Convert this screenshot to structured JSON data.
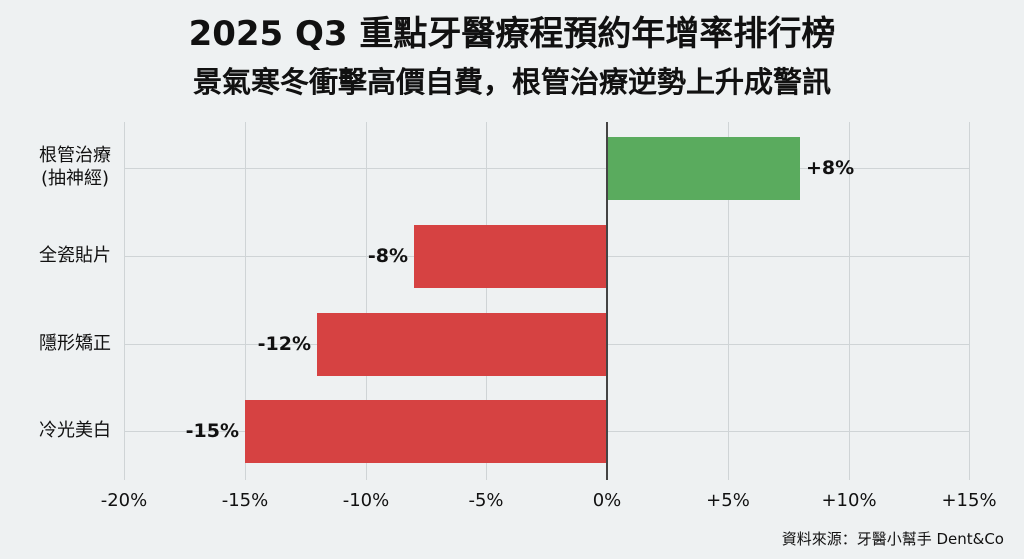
{
  "title": "2025 Q3 重點牙醫療程預約年增率排行榜",
  "subtitle": "景氣寒冬衝擊高價自費，根管治療逆勢上升成警訊",
  "source": "資料來源：牙醫小幫手 Dent&Co",
  "colors": {
    "positive": "#5aab5e",
    "negative": "#d64242",
    "background": "#eef1f2",
    "grid": "#cfd4d6"
  },
  "categories": [
    {
      "line1": "根管治療",
      "line2": "(抽神經)",
      "value": 8,
      "label": "+8%"
    },
    {
      "line1": "全瓷貼片",
      "line2": "",
      "value": -8,
      "label": "-8%"
    },
    {
      "line1": "隱形矯正",
      "line2": "",
      "value": -12,
      "label": "-12%"
    },
    {
      "line1": "冷光美白",
      "line2": "",
      "value": -15,
      "label": "-15%"
    }
  ],
  "xticks": [
    "-20%",
    "-15%",
    "-10%",
    "-5%",
    "0%",
    "+5%",
    "+10%",
    "+15%"
  ],
  "chart_data": {
    "type": "bar",
    "orientation": "horizontal",
    "title": "2025 Q3 重點牙醫療程預約年增率排行榜",
    "subtitle": "景氣寒冬衝擊高價自費，根管治療逆勢上升成警訊",
    "categories": [
      "根管治療 (抽神經)",
      "全瓷貼片",
      "隱形矯正",
      "冷光美白"
    ],
    "values": [
      8,
      -8,
      -12,
      -15
    ],
    "data_labels": [
      "+8%",
      "-8%",
      "-12%",
      "-15%"
    ],
    "xlabel": "",
    "ylabel": "",
    "xlim": [
      -20,
      15
    ],
    "xticks": [
      "-20%",
      "-15%",
      "-10%",
      "-5%",
      "0%",
      "+5%",
      "+10%",
      "+15%"
    ],
    "grid": true,
    "legend": null,
    "annotation": "資料來源：牙醫小幫手 Dent&Co"
  }
}
